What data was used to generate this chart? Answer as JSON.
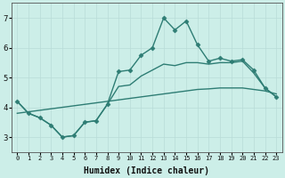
{
  "xlabel": "Humidex (Indice chaleur)",
  "background_color": "#cceee8",
  "line_color": "#2e7d74",
  "grid_color": "#b8dcd8",
  "x": [
    0,
    1,
    2,
    3,
    4,
    5,
    6,
    7,
    8,
    9,
    10,
    11,
    12,
    13,
    14,
    15,
    16,
    17,
    18,
    19,
    20,
    21,
    22,
    23
  ],
  "y_main": [
    4.2,
    3.8,
    3.65,
    3.4,
    3.0,
    3.05,
    3.5,
    3.55,
    4.1,
    5.2,
    5.25,
    5.75,
    6.0,
    7.0,
    6.6,
    6.9,
    6.1,
    5.55,
    5.65,
    5.55,
    5.6,
    5.25,
    4.65,
    4.35
  ],
  "y_upper": [
    4.2,
    3.8,
    3.65,
    3.4,
    3.0,
    3.05,
    3.5,
    3.55,
    4.1,
    4.7,
    4.75,
    5.05,
    5.25,
    5.45,
    5.4,
    5.5,
    5.5,
    5.45,
    5.5,
    5.5,
    5.55,
    5.15,
    4.65,
    4.35
  ],
  "y_lower": [
    3.8,
    3.85,
    3.9,
    3.95,
    4.0,
    4.05,
    4.1,
    4.15,
    4.2,
    4.25,
    4.3,
    4.35,
    4.4,
    4.45,
    4.5,
    4.55,
    4.6,
    4.62,
    4.65,
    4.65,
    4.65,
    4.6,
    4.55,
    4.45
  ],
  "ylim": [
    2.5,
    7.5
  ],
  "xlim": [
    -0.5,
    23.5
  ],
  "yticks": [
    3,
    4,
    5,
    6,
    7
  ],
  "xticks": [
    0,
    1,
    2,
    3,
    4,
    5,
    6,
    7,
    8,
    9,
    10,
    11,
    12,
    13,
    14,
    15,
    16,
    17,
    18,
    19,
    20,
    21,
    22,
    23
  ],
  "markersize": 2.5,
  "linewidth": 1.0
}
